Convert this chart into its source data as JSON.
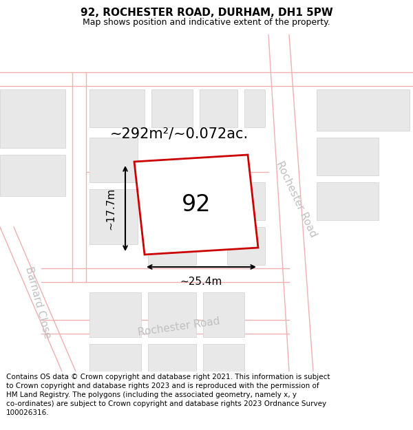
{
  "title": "92, ROCHESTER ROAD, DURHAM, DH1 5PW",
  "subtitle": "Map shows position and indicative extent of the property.",
  "footer": "Contains OS data © Crown copyright and database right 2021. This information is subject\nto Crown copyright and database rights 2023 and is reproduced with the permission of\nHM Land Registry. The polygons (including the associated geometry, namely x, y\nco-ordinates) are subject to Crown copyright and database rights 2023 Ordnance Survey\n100026316.",
  "map_bg": "#ffffff",
  "building_fill": "#e8e8e8",
  "building_edge": "#d0d0d0",
  "road_line_color": "#f0b0b0",
  "road_label_color": "#c0c0c0",
  "plot_outline_color": "#cc0000",
  "title_fontsize": 11,
  "subtitle_fontsize": 9,
  "footer_fontsize": 7.5,
  "road_label_fontsize": 11,
  "area_label_fontsize": 15,
  "dim_label_fontsize": 11,
  "plot_label_fontsize": 24
}
